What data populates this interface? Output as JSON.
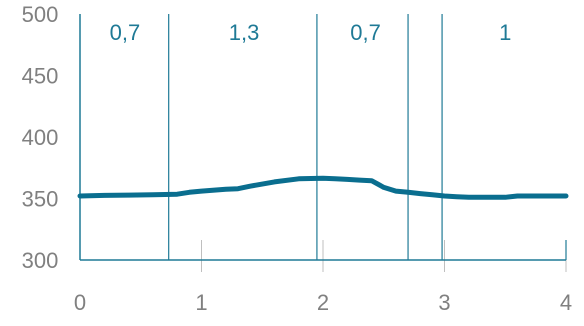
{
  "chart_data": {
    "type": "line",
    "title": "",
    "xlabel": "",
    "ylabel": "",
    "xlim": [
      0,
      4
    ],
    "ylim": [
      300,
      500
    ],
    "x_ticks": [
      0,
      1,
      2,
      3,
      4
    ],
    "x_tick_labels": [
      "0",
      "1",
      "2",
      "3",
      "4"
    ],
    "y_ticks": [
      300,
      350,
      400,
      450,
      500
    ],
    "y_tick_labels": [
      "300",
      "350",
      "400",
      "450",
      "500"
    ],
    "grid": false,
    "legend": "none",
    "dividers": [
      0.73,
      1.95,
      2.7,
      2.98
    ],
    "band_labels": [
      {
        "x": 0.37,
        "text": "0,7"
      },
      {
        "x": 1.35,
        "text": "1,3"
      },
      {
        "x": 2.35,
        "text": "0,7"
      },
      {
        "x": 3.5,
        "text": "1"
      }
    ],
    "series": [
      {
        "x": [
          0,
          0.2,
          0.4,
          0.6,
          0.8,
          0.9,
          1.0,
          1.2,
          1.3,
          1.4,
          1.6,
          1.8,
          2.0,
          2.1,
          2.2,
          2.3,
          2.4,
          2.5,
          2.6,
          2.7,
          2.8,
          2.9,
          3.0,
          3.1,
          3.2,
          3.4,
          3.5,
          3.6,
          3.8,
          4.0
        ],
        "values": [
          352,
          352.5,
          352.8,
          353,
          353.5,
          355,
          356,
          357.5,
          358,
          360,
          363.5,
          366,
          366.5,
          366,
          365.5,
          365,
          364.5,
          359,
          356,
          355,
          354,
          353,
          352,
          351.5,
          351,
          351,
          351,
          352,
          352,
          352
        ]
      }
    ],
    "colors": {
      "line": "#0a6e8f",
      "divider": "#1f7a96",
      "axis": "#1f7a96",
      "tick_text": "#808080",
      "faint_tick": "#bfbfbf"
    }
  }
}
